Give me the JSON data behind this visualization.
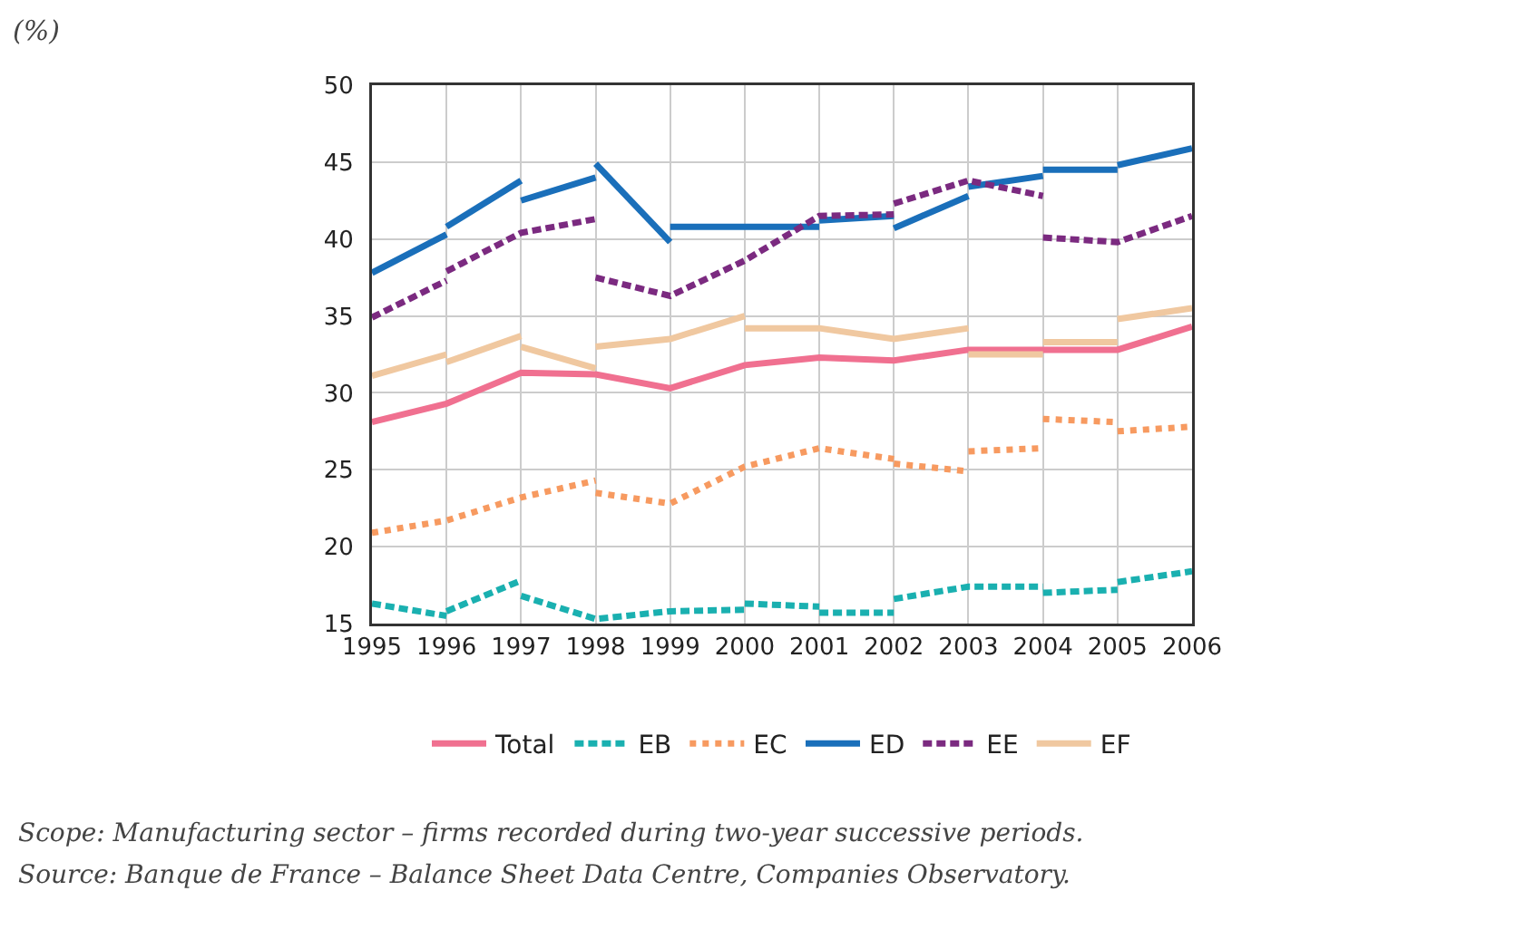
{
  "chart_data": {
    "type": "line",
    "xlim": [
      1995,
      2006
    ],
    "xticks": [
      1995,
      1996,
      1997,
      1998,
      1999,
      2000,
      2001,
      2002,
      2003,
      2004,
      2005,
      2006
    ],
    "ylim": [
      15,
      50
    ],
    "yticks": [
      15,
      20,
      25,
      30,
      35,
      40,
      45,
      50
    ],
    "grid": true,
    "legend": "bottom",
    "marker": "none",
    "series": [
      {
        "name": "Total",
        "color": "#f07090",
        "line_style": "solid",
        "x": [
          1995,
          1996,
          1997,
          1998,
          1999,
          2000,
          2001,
          2002,
          2003,
          2004,
          2005,
          2006
        ],
        "values": [
          28.1,
          29.3,
          31.3,
          31.2,
          30.3,
          31.8,
          32.3,
          32.1,
          32.8,
          32.8,
          32.8,
          34.3
        ]
      },
      {
        "name": "EB",
        "color": "#1ab0b0",
        "line_style": "dashed",
        "x": [
          1995,
          1996
        ],
        "values": [
          16.3,
          15.5
        ]
      },
      {
        "color": "#1ab0b0",
        "line_style": "dashed",
        "x": [
          1996,
          1997
        ],
        "values": [
          15.8,
          17.8
        ]
      },
      {
        "color": "#1ab0b0",
        "line_style": "dashed",
        "x": [
          1997,
          1998,
          1999,
          2000
        ],
        "values": [
          16.8,
          15.3,
          15.8,
          15.9
        ]
      },
      {
        "color": "#1ab0b0",
        "line_style": "dashed",
        "x": [
          2000,
          2001
        ],
        "values": [
          16.3,
          16.1
        ]
      },
      {
        "color": "#1ab0b0",
        "line_style": "dashed",
        "x": [
          2001,
          2002
        ],
        "values": [
          15.7,
          15.7
        ]
      },
      {
        "color": "#1ab0b0",
        "line_style": "dashed",
        "x": [
          2002,
          2003,
          2004
        ],
        "values": [
          16.6,
          17.4,
          17.4
        ]
      },
      {
        "color": "#1ab0b0",
        "line_style": "dashed",
        "x": [
          2004,
          2005
        ],
        "values": [
          17.0,
          17.2
        ]
      },
      {
        "color": "#1ab0b0",
        "line_style": "dashed",
        "x": [
          2005,
          2006
        ],
        "values": [
          17.7,
          18.4
        ]
      },
      {
        "name": "EC",
        "color": "#f79a60",
        "line_style": "dotted",
        "x": [
          1995,
          1996,
          1997,
          1998
        ],
        "values": [
          20.9,
          21.7,
          23.2,
          24.3
        ]
      },
      {
        "color": "#f79a60",
        "line_style": "dotted",
        "x": [
          1998,
          1999,
          2000,
          2001,
          2002
        ],
        "values": [
          23.5,
          22.8,
          25.2,
          26.4,
          25.7
        ]
      },
      {
        "color": "#f79a60",
        "line_style": "dotted",
        "x": [
          2002,
          2003
        ],
        "values": [
          25.4,
          24.9
        ]
      },
      {
        "color": "#f79a60",
        "line_style": "dotted",
        "x": [
          2003,
          2004
        ],
        "values": [
          26.2,
          26.4
        ]
      },
      {
        "color": "#f79a60",
        "line_style": "dotted",
        "x": [
          2004,
          2005
        ],
        "values": [
          28.3,
          28.1
        ]
      },
      {
        "color": "#f79a60",
        "line_style": "dotted",
        "x": [
          2005,
          2006
        ],
        "values": [
          27.5,
          27.8
        ]
      },
      {
        "name": "ED",
        "color": "#1a6fba",
        "line_style": "solid",
        "x": [
          1995,
          1996
        ],
        "values": [
          37.8,
          40.3
        ]
      },
      {
        "color": "#1a6fba",
        "line_style": "solid",
        "x": [
          1996,
          1997
        ],
        "values": [
          40.8,
          43.8
        ]
      },
      {
        "color": "#1a6fba",
        "line_style": "solid",
        "x": [
          1997,
          1998
        ],
        "values": [
          42.5,
          44.0
        ]
      },
      {
        "color": "#1a6fba",
        "line_style": "solid",
        "x": [
          1998,
          1999
        ],
        "values": [
          44.9,
          39.8
        ]
      },
      {
        "color": "#1a6fba",
        "line_style": "solid",
        "x": [
          1999,
          2000,
          2001
        ],
        "values": [
          40.8,
          40.8,
          40.8
        ]
      },
      {
        "color": "#1a6fba",
        "line_style": "solid",
        "x": [
          2001,
          2002
        ],
        "values": [
          41.2,
          41.5
        ]
      },
      {
        "color": "#1a6fba",
        "line_style": "solid",
        "x": [
          2002,
          2003
        ],
        "values": [
          40.7,
          42.8
        ]
      },
      {
        "color": "#1a6fba",
        "line_style": "solid",
        "x": [
          2003,
          2004
        ],
        "values": [
          43.4,
          44.1
        ]
      },
      {
        "color": "#1a6fba",
        "line_style": "solid",
        "x": [
          2004,
          2005
        ],
        "values": [
          44.5,
          44.5
        ]
      },
      {
        "color": "#1a6fba",
        "line_style": "solid",
        "x": [
          2005,
          2006
        ],
        "values": [
          44.8,
          45.9
        ]
      },
      {
        "name": "EE",
        "color": "#7b2a80",
        "line_style": "dashed",
        "x": [
          1995,
          1996
        ],
        "values": [
          34.9,
          37.3
        ]
      },
      {
        "color": "#7b2a80",
        "line_style": "dashed",
        "x": [
          1996,
          1997,
          1998
        ],
        "values": [
          37.9,
          40.4,
          41.3
        ]
      },
      {
        "color": "#7b2a80",
        "line_style": "dashed",
        "x": [
          1998,
          1999,
          2000,
          2001,
          2002
        ],
        "values": [
          37.5,
          36.3,
          38.6,
          41.5,
          41.6
        ]
      },
      {
        "color": "#7b2a80",
        "line_style": "dashed",
        "x": [
          2002,
          2003,
          2004
        ],
        "values": [
          42.3,
          43.8,
          42.8
        ]
      },
      {
        "color": "#7b2a80",
        "line_style": "dashed",
        "x": [
          2004,
          2005,
          2006
        ],
        "values": [
          40.1,
          39.8,
          41.5
        ]
      },
      {
        "name": "EF",
        "color": "#f0c8a0",
        "line_style": "solid",
        "x": [
          1995,
          1996
        ],
        "values": [
          31.1,
          32.5
        ]
      },
      {
        "color": "#f0c8a0",
        "line_style": "solid",
        "x": [
          1996,
          1997
        ],
        "values": [
          32.0,
          33.7
        ]
      },
      {
        "color": "#f0c8a0",
        "line_style": "solid",
        "x": [
          1997,
          1998
        ],
        "values": [
          33.0,
          31.6
        ]
      },
      {
        "color": "#f0c8a0",
        "line_style": "solid",
        "x": [
          1998,
          1999,
          2000
        ],
        "values": [
          33.0,
          33.5,
          35.0
        ]
      },
      {
        "color": "#f0c8a0",
        "line_style": "solid",
        "x": [
          2000,
          2001,
          2002,
          2003
        ],
        "values": [
          34.2,
          34.2,
          33.5,
          34.2
        ]
      },
      {
        "color": "#f0c8a0",
        "line_style": "solid",
        "x": [
          2003,
          2004
        ],
        "values": [
          32.5,
          32.5
        ]
      },
      {
        "color": "#f0c8a0",
        "line_style": "solid",
        "x": [
          2004,
          2005
        ],
        "values": [
          33.3,
          33.3
        ]
      },
      {
        "color": "#f0c8a0",
        "line_style": "solid",
        "x": [
          2005,
          2006
        ],
        "values": [
          34.8,
          35.5
        ]
      }
    ],
    "annotations": [
      "(%)",
      "Scope: Manufacturing sector – firms recorded during two-year successive periods.",
      "Source: Banque de France – Balance Sheet Data Centre, Companies Observatory."
    ]
  }
}
